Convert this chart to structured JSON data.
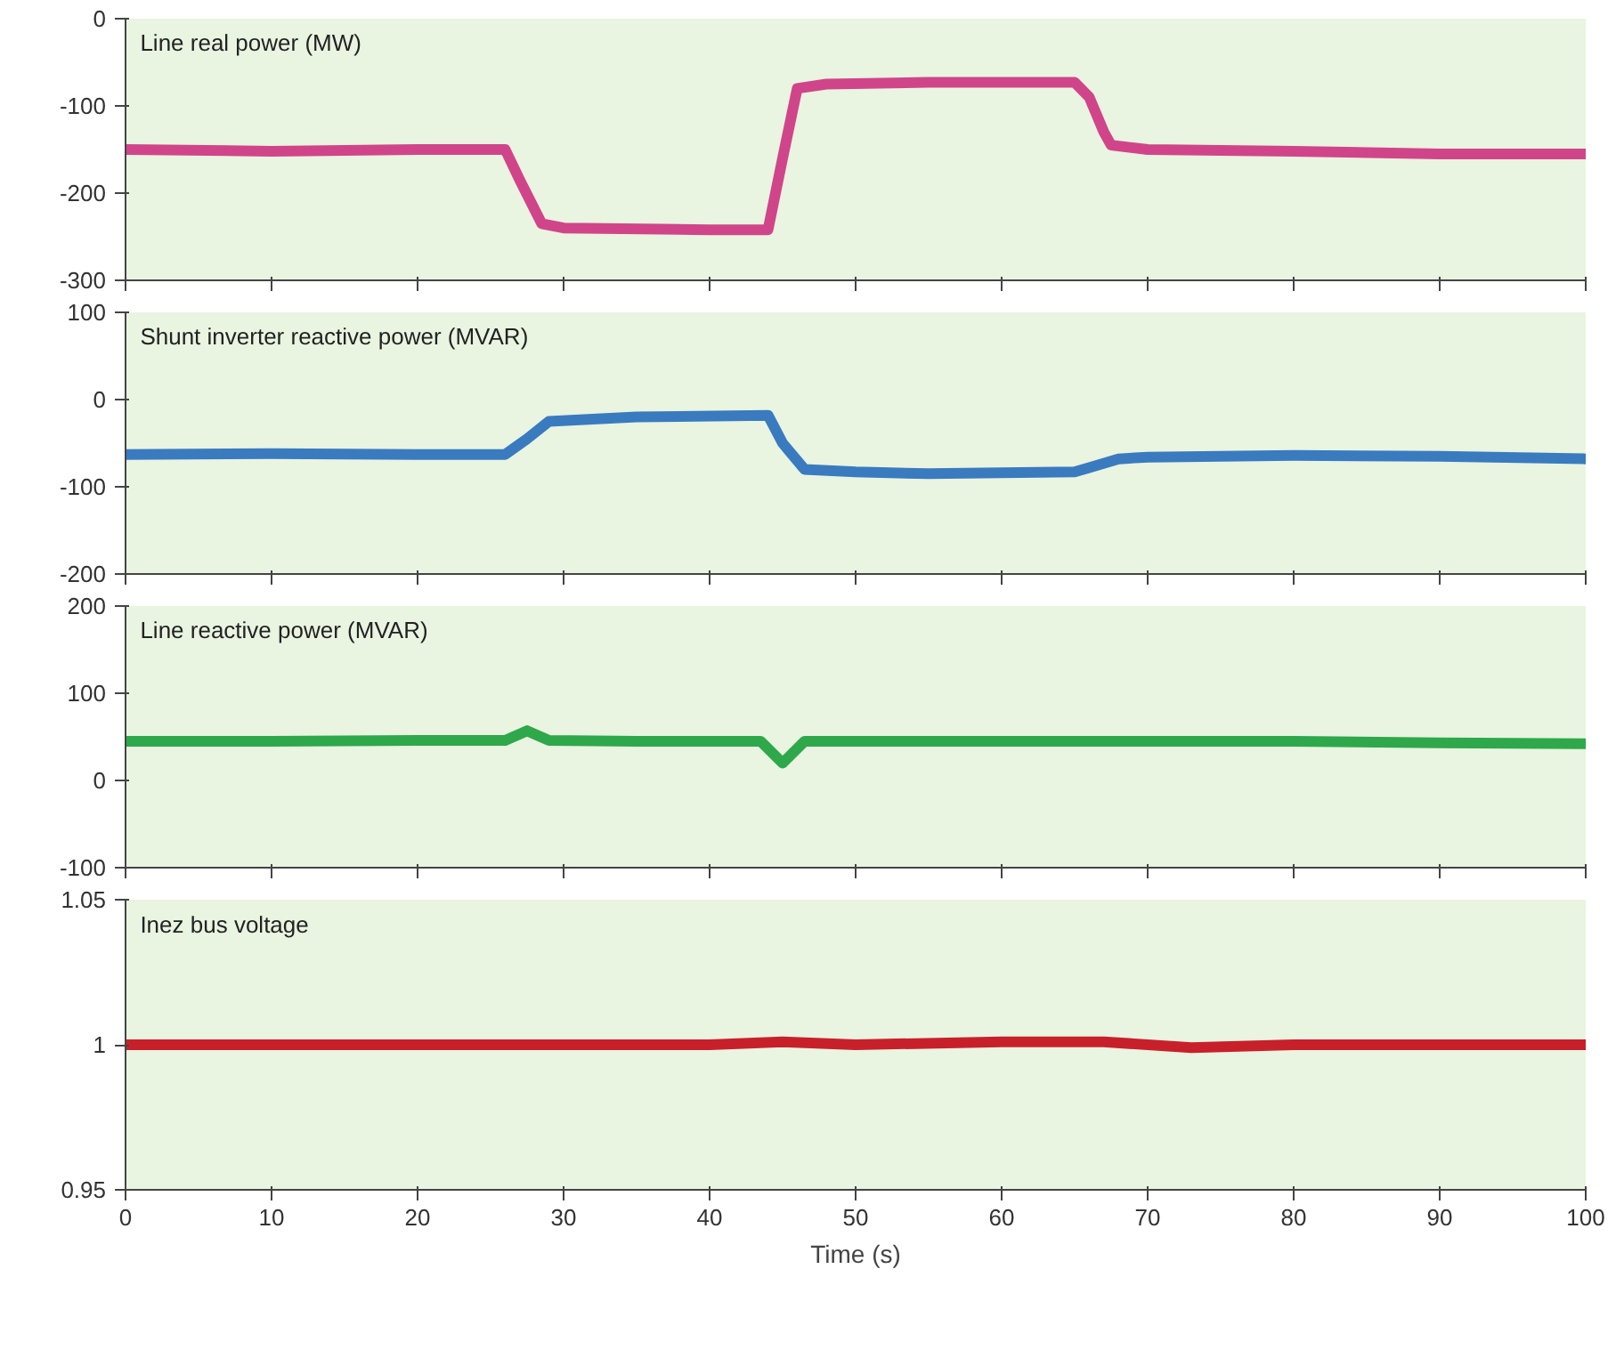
{
  "chart_data": [
    {
      "type": "line",
      "xlim": [
        0,
        100
      ],
      "xticks": [
        0,
        10,
        20,
        30,
        40,
        50,
        60,
        70,
        80,
        90,
        100
      ],
      "ylim": [
        -300,
        0
      ],
      "yticks": [
        0,
        -100,
        -200,
        -300
      ],
      "tick_labels": "y",
      "grid": false,
      "series": [
        {
          "name": "Line real power (MW)",
          "color": "#d0458a",
          "x": [
            0,
            10,
            20,
            26,
            27,
            28.5,
            30,
            40,
            44,
            45,
            46,
            48,
            55,
            65,
            66,
            67,
            67.5,
            70,
            80,
            90,
            100
          ],
          "values": [
            -150,
            -152,
            -150,
            -150,
            -185,
            -235,
            -240,
            -242,
            -242,
            -160,
            -80,
            -75,
            -73,
            -73,
            -90,
            -130,
            -145,
            -150,
            -152,
            -155,
            -155
          ]
        }
      ]
    },
    {
      "type": "line",
      "xlim": [
        0,
        100
      ],
      "xticks": [
        0,
        10,
        20,
        30,
        40,
        50,
        60,
        70,
        80,
        90,
        100
      ],
      "ylim": [
        -200,
        100
      ],
      "yticks": [
        100,
        0,
        -100,
        -200
      ],
      "tick_labels": "y",
      "grid": false,
      "series": [
        {
          "name": "Shunt inverter reactive power (MVAR)",
          "color": "#3a7bbf",
          "x": [
            0,
            10,
            20,
            26,
            27.5,
            29,
            35,
            44,
            45,
            46.5,
            50,
            55,
            60,
            65,
            66,
            68,
            70,
            80,
            90,
            100
          ],
          "values": [
            -63,
            -62,
            -63,
            -63,
            -45,
            -25,
            -20,
            -18,
            -50,
            -80,
            -83,
            -85,
            -84,
            -83,
            -78,
            -68,
            -66,
            -64,
            -65,
            -68
          ]
        }
      ]
    },
    {
      "type": "line",
      "xlim": [
        0,
        100
      ],
      "xticks": [
        0,
        10,
        20,
        30,
        40,
        50,
        60,
        70,
        80,
        90,
        100
      ],
      "ylim": [
        -100,
        200
      ],
      "yticks": [
        200,
        100,
        0,
        -100
      ],
      "tick_labels": "y",
      "grid": false,
      "series": [
        {
          "name": "Line reactive power (MVAR)",
          "color": "#2ea84a",
          "x": [
            0,
            10,
            20,
            26,
            27.5,
            29,
            35,
            43.5,
            45,
            46.5,
            50,
            60,
            70,
            80,
            90,
            100
          ],
          "values": [
            45,
            45,
            46,
            46,
            57,
            46,
            45,
            45,
            20,
            45,
            45,
            45,
            45,
            45,
            43,
            42
          ]
        }
      ]
    },
    {
      "type": "line",
      "xlim": [
        0,
        100
      ],
      "xticks": [
        0,
        10,
        20,
        30,
        40,
        50,
        60,
        70,
        80,
        90,
        100
      ],
      "ylim": [
        0.95,
        1.05
      ],
      "yticks": [
        {
          "value": 1.05,
          "label": "1.05"
        },
        1,
        {
          "value": 0.95,
          "label": "0.95"
        }
      ],
      "xlabel": "Time (s)",
      "grid": false,
      "series": [
        {
          "name": "Inez bus voltage",
          "color": "#c8202a",
          "x": [
            0,
            20,
            40,
            45,
            50,
            60,
            67,
            73,
            80,
            100
          ],
          "values": [
            1,
            1,
            1,
            1.001,
            1,
            1.001,
            1.001,
            0.999,
            1,
            1
          ]
        }
      ]
    }
  ]
}
